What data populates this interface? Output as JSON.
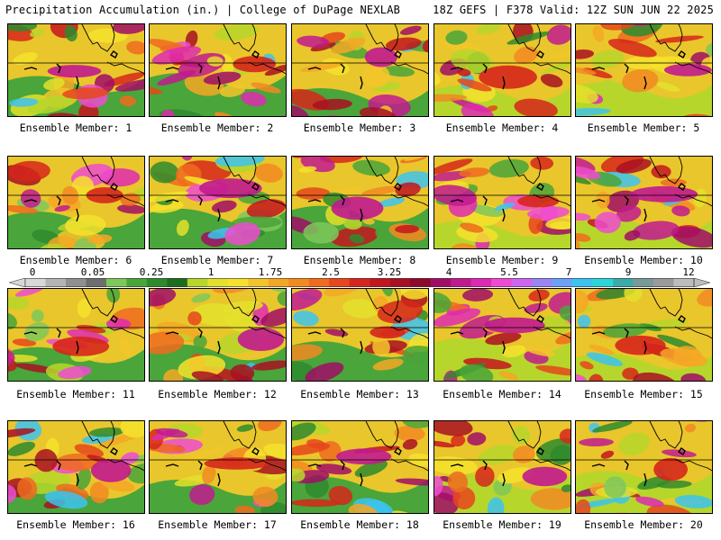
{
  "header": {
    "left_title": "Precipitation Accumulation (in.) | College of DuPage NEXLAB",
    "right_title": "18Z GEFS | F378 Valid: 12Z SUN JUN 22 2025"
  },
  "colorbar": {
    "labels": [
      "0",
      "0.05",
      "0.25",
      "1",
      "1.75",
      "2.5",
      "3.25",
      "4",
      "5.5",
      "7",
      "9",
      "12"
    ],
    "colors": [
      "#d8d8d8",
      "#b4b4b4",
      "#909090",
      "#6e6e6e",
      "#7fc75a",
      "#4aa53a",
      "#2e8a2e",
      "#1e6d1e",
      "#b7d62b",
      "#e4e12c",
      "#f6e22d",
      "#f3c52a",
      "#f4a725",
      "#f28a22",
      "#ef6b1e",
      "#e6471c",
      "#d6261b",
      "#c4151f",
      "#a81022",
      "#8c0a2a",
      "#a10d66",
      "#c11a8f",
      "#de2ab2",
      "#ee4bd1",
      "#cc66ee",
      "#9a86f2",
      "#6aa2f7",
      "#3cc3f0",
      "#2ad6d6",
      "#3aaba8",
      "#7a9a98",
      "#9a9a9a",
      "#bdbdbd"
    ]
  },
  "panels": [
    {
      "caption": "Ensemble Member: 1"
    },
    {
      "caption": "Ensemble Member: 2"
    },
    {
      "caption": "Ensemble Member: 3"
    },
    {
      "caption": "Ensemble Member: 4"
    },
    {
      "caption": "Ensemble Member: 5"
    },
    {
      "caption": "Ensemble Member: 6"
    },
    {
      "caption": "Ensemble Member: 7"
    },
    {
      "caption": "Ensemble Member: 8"
    },
    {
      "caption": "Ensemble Member: 9"
    },
    {
      "caption": "Ensemble Member: 10"
    },
    {
      "caption": "Ensemble Member: 11"
    },
    {
      "caption": "Ensemble Member: 12"
    },
    {
      "caption": "Ensemble Member: 13"
    },
    {
      "caption": "Ensemble Member: 14"
    },
    {
      "caption": "Ensemble Member: 15"
    },
    {
      "caption": "Ensemble Member: 16"
    },
    {
      "caption": "Ensemble Member: 17"
    },
    {
      "caption": "Ensemble Member: 18"
    },
    {
      "caption": "Ensemble Member: 19"
    },
    {
      "caption": "Ensemble Member: 20"
    }
  ]
}
